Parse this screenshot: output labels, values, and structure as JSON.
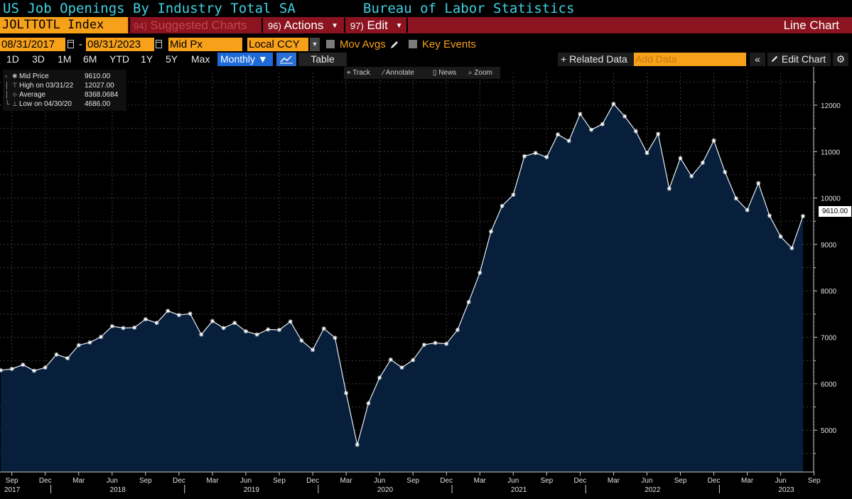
{
  "title": {
    "left": "US Job Openings By Industry Total SA",
    "right": "Bureau of Labor Statistics"
  },
  "command_bar": {
    "ticker": "JOLTTOTL Index",
    "suggested": {
      "num": "94)",
      "label": "Suggested Charts"
    },
    "actions": {
      "num": "96)",
      "label": "Actions"
    },
    "edit": {
      "num": "97)",
      "label": "Edit"
    },
    "chart_type": "Line Chart"
  },
  "options": {
    "start_date": "08/31/2017",
    "dash": "-",
    "end_date": "08/31/2023",
    "field": "Mid Px",
    "currency": "Local CCY",
    "mov_avgs": "Mov Avgs",
    "key_events": "Key Events"
  },
  "toolbar": {
    "ranges": [
      "1D",
      "3D",
      "1M",
      "6M",
      "YTD",
      "1Y",
      "5Y",
      "Max"
    ],
    "frequency": "Monthly ▼",
    "table": "Table",
    "related": "+ Related Data",
    "add_data_placeholder": "Add Data",
    "collapse": "«",
    "edit_chart": "Edit Chart",
    "settings": "⚙"
  },
  "legend": {
    "rows": [
      {
        "label": "Mid Price",
        "value": "9610.00"
      },
      {
        "label": "High on 03/31/22",
        "value": "12027.00"
      },
      {
        "label": "Average",
        "value": "8368.0684"
      },
      {
        "label": "Low on 04/30/20",
        "value": "4686.00"
      }
    ]
  },
  "chart_tools": [
    "Track",
    "Annotate",
    "News",
    "Zoom"
  ],
  "last_value_label": "9610.00",
  "colors": {
    "title": "#3fd0e0",
    "bar": "#8b1420",
    "orange": "#f7a11a",
    "area_fill": "#071f3b",
    "line": "#e9eef4",
    "grid": "#3a3a3a"
  },
  "chart_data": {
    "type": "area",
    "title": "US Job Openings By Industry Total SA",
    "series": [
      {
        "name": "Mid Price",
        "values": [
          6290,
          6320,
          6410,
          6280,
          6350,
          6630,
          6550,
          6830,
          6890,
          7010,
          7240,
          7200,
          7210,
          7390,
          7310,
          7570,
          7480,
          7510,
          7060,
          7350,
          7200,
          7310,
          7130,
          7060,
          7170,
          7160,
          7340,
          6930,
          6730,
          7190,
          6990,
          5800,
          4686,
          5580,
          6130,
          6520,
          6350,
          6510,
          6840,
          6880,
          6860,
          7160,
          7760,
          8390,
          9280,
          9830,
          10070,
          10900,
          10970,
          10880,
          11370,
          11230,
          11810,
          11470,
          11590,
          12027,
          11760,
          11440,
          10970,
          11380,
          10200,
          10860,
          10470,
          10760,
          11240,
          10560,
          9990,
          9740,
          10320,
          9620,
          9170,
          8920,
          9610
        ]
      }
    ],
    "x_start": "2017-08-31",
    "x_end": "2023-08-31",
    "x_tick_labels": [
      "Sep",
      "Dec",
      "Mar",
      "Jun",
      "Sep",
      "Dec",
      "Mar",
      "Jun",
      "Sep",
      "Dec",
      "Mar",
      "Jun",
      "Sep",
      "Dec",
      "Mar",
      "Jun",
      "Sep",
      "Dec",
      "Mar",
      "Jun",
      "Sep",
      "Dec",
      "Mar",
      "Jun",
      "Sep"
    ],
    "x_year_labels": [
      "2017",
      "2018",
      "2019",
      "2020",
      "2021",
      "2022",
      "2023"
    ],
    "y_ticks": [
      5000,
      6000,
      7000,
      8000,
      9000,
      10000,
      11000,
      12000
    ],
    "ylim": [
      4100,
      12550
    ],
    "grid": true
  }
}
